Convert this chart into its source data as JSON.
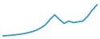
{
  "x": [
    0,
    1,
    2,
    3,
    4,
    5,
    6,
    7,
    8,
    9,
    10,
    11,
    12,
    13,
    14,
    15,
    16,
    17,
    18,
    19,
    20
  ],
  "y": [
    1.0,
    1.2,
    1.5,
    1.8,
    2.2,
    2.8,
    3.5,
    4.5,
    6.0,
    8.0,
    11.5,
    14.5,
    11.5,
    9.0,
    10.5,
    9.5,
    10.0,
    10.5,
    13.5,
    17.5,
    21.0
  ],
  "line_color": "#3399cc",
  "linewidth": 1.3,
  "background_color": "#ffffff",
  "ylim": [
    0,
    23
  ],
  "xlim": [
    -0.3,
    20.3
  ]
}
